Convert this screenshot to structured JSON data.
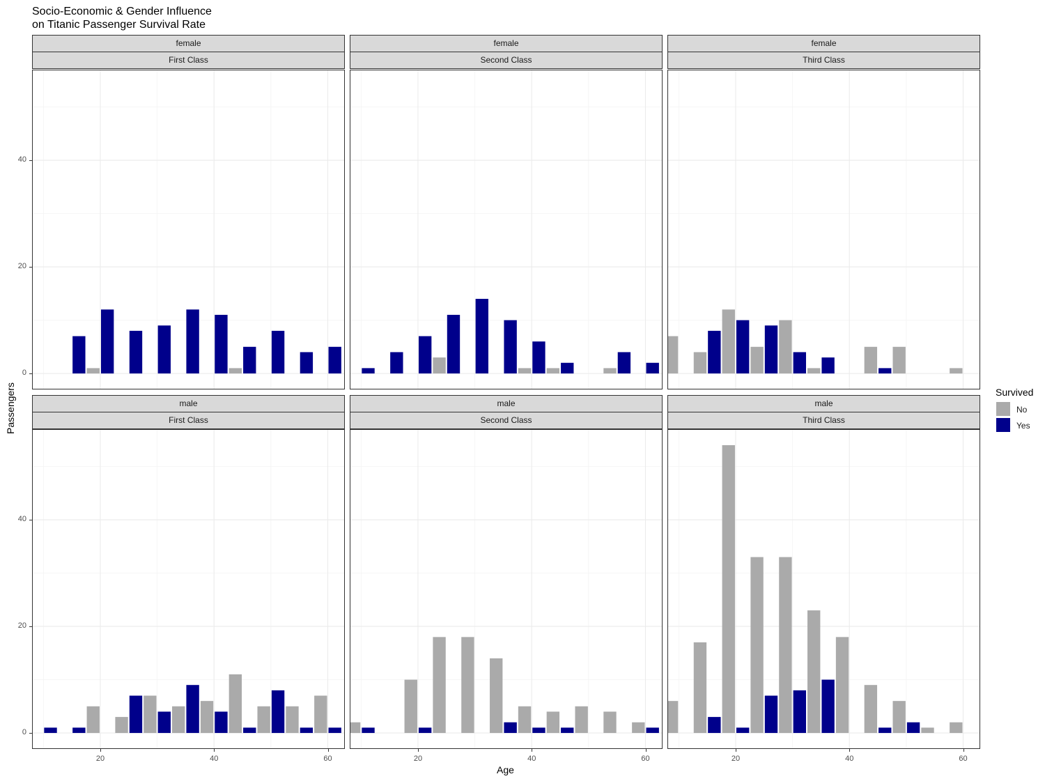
{
  "chart_data": {
    "type": "bar",
    "title_lines": [
      "Socio-Economic & Gender Influence",
      "on Titanic Passenger Survival Rate"
    ],
    "xlabel": "Age",
    "ylabel": "Passengers",
    "xlim": [
      8,
      63
    ],
    "ylim": [
      -3,
      57
    ],
    "x_ticks": [
      20,
      40,
      60
    ],
    "y_ticks": [
      0,
      20,
      40
    ],
    "bin_width": 5,
    "legend": {
      "title": "Survived",
      "position": "right",
      "entries": [
        {
          "label": "No",
          "color": "#AAAAAA"
        },
        {
          "label": "Yes",
          "color": "#00008B"
        }
      ]
    },
    "panels": [
      {
        "sex": "female",
        "class": "First Class",
        "bins": [
          10,
          15,
          20,
          25,
          30,
          35,
          40,
          45,
          50,
          55,
          60
        ],
        "series": [
          {
            "name": "No",
            "values": [
              0,
              0,
              1,
              0,
              0,
              0,
              0,
              1,
              0,
              0,
              0
            ]
          },
          {
            "name": "Yes",
            "values": [
              0,
              7,
              12,
              8,
              9,
              12,
              11,
              5,
              8,
              4,
              5
            ]
          }
        ]
      },
      {
        "sex": "female",
        "class": "Second Class",
        "bins": [
          10,
          15,
          20,
          25,
          30,
          35,
          40,
          45,
          50,
          55,
          60
        ],
        "series": [
          {
            "name": "No",
            "values": [
              0,
              0,
              0,
              3,
              0,
              0,
              1,
              1,
              0,
              1,
              0
            ]
          },
          {
            "name": "Yes",
            "values": [
              1,
              4,
              7,
              11,
              14,
              10,
              6,
              2,
              0,
              4,
              2
            ]
          }
        ]
      },
      {
        "sex": "female",
        "class": "Third Class",
        "bins": [
          10,
          15,
          20,
          25,
          30,
          35,
          40,
          45,
          50,
          55,
          60
        ],
        "series": [
          {
            "name": "No",
            "values": [
              7,
              4,
              12,
              5,
              10,
              1,
              0,
              5,
              5,
              0,
              1
            ]
          },
          {
            "name": "Yes",
            "values": [
              0,
              8,
              10,
              9,
              4,
              3,
              0,
              1,
              0,
              0,
              0
            ]
          }
        ]
      },
      {
        "sex": "male",
        "class": "First Class",
        "bins": [
          10,
          15,
          20,
          25,
          30,
          35,
          40,
          45,
          50,
          55,
          60
        ],
        "series": [
          {
            "name": "No",
            "values": [
              0,
              0,
              5,
              3,
              7,
              5,
              6,
              11,
              5,
              5,
              7
            ]
          },
          {
            "name": "Yes",
            "values": [
              1,
              1,
              0,
              7,
              4,
              9,
              4,
              1,
              8,
              1,
              1
            ]
          }
        ]
      },
      {
        "sex": "male",
        "class": "Second Class",
        "bins": [
          10,
          15,
          20,
          25,
          30,
          35,
          40,
          45,
          50,
          55,
          60
        ],
        "series": [
          {
            "name": "No",
            "values": [
              2,
              0,
              10,
              18,
              18,
              14,
              5,
              4,
              5,
              4,
              2
            ]
          },
          {
            "name": "Yes",
            "values": [
              1,
              0,
              1,
              0,
              0,
              2,
              1,
              1,
              0,
              0,
              1
            ]
          }
        ]
      },
      {
        "sex": "male",
        "class": "Third Class",
        "bins": [
          10,
          15,
          20,
          25,
          30,
          35,
          40,
          45,
          50,
          55,
          60
        ],
        "series": [
          {
            "name": "No",
            "values": [
              6,
              17,
              54,
              33,
              33,
              23,
              18,
              9,
              6,
              1,
              2
            ]
          },
          {
            "name": "Yes",
            "values": [
              0,
              3,
              1,
              7,
              8,
              10,
              0,
              1,
              2,
              0,
              0
            ]
          }
        ]
      }
    ]
  }
}
